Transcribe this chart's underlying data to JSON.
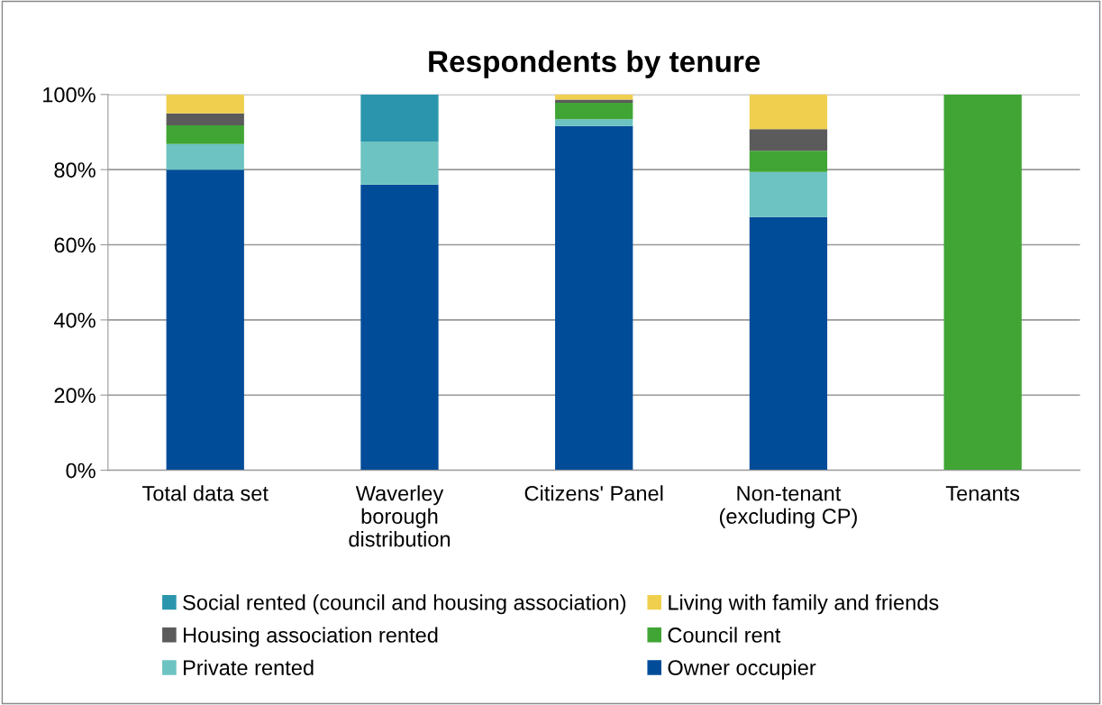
{
  "chart_data": {
    "type": "bar",
    "title": "Respondents by tenure",
    "stacked": true,
    "categories": [
      "Total data set",
      "Waverley\nborough\ndistribution",
      "Citizens' Panel",
      "Non-tenant\n(excluding CP)",
      "Tenants"
    ],
    "series": [
      {
        "name": "Owner occupier",
        "color": "#004c99",
        "values": [
          80,
          76,
          91.6,
          67.4,
          null
        ]
      },
      {
        "name": "Private rented",
        "color": "#6cc3c1",
        "values": [
          6.8,
          11.4,
          1.8,
          12,
          null
        ]
      },
      {
        "name": "Council rent",
        "color": "#40a535",
        "values": [
          5,
          null,
          4.4,
          5.6,
          100
        ]
      },
      {
        "name": "Housing association rented",
        "color": "#5b5b5b",
        "values": [
          3.2,
          null,
          0.8,
          5.8,
          null
        ]
      },
      {
        "name": "Living with family and friends",
        "color": "#f0cf4e",
        "values": [
          5,
          null,
          1.4,
          9.2,
          null
        ]
      },
      {
        "name": "Social rented (council and housing association)",
        "color": "#2b95ad",
        "values": [
          null,
          12.6,
          null,
          null,
          null
        ]
      }
    ],
    "ylim": [
      0,
      100
    ],
    "yticks": [
      {
        "value": 0,
        "label": "0%"
      },
      {
        "value": 20,
        "label": "20%"
      },
      {
        "value": 40,
        "label": "40%"
      },
      {
        "value": 60,
        "label": "60%"
      },
      {
        "value": 80,
        "label": "80%"
      },
      {
        "value": 100,
        "label": "100%"
      }
    ],
    "grid": "y",
    "legend": "bottom"
  }
}
